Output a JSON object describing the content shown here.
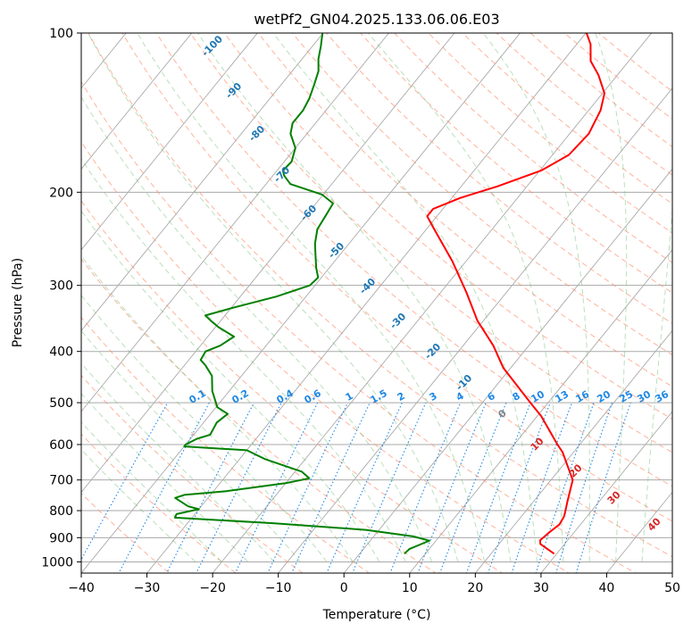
{
  "chart_data": {
    "type": "line",
    "subtype": "skew-T log-P diagram",
    "title": "wetPf2_GN04.2025.133.06.06.E03",
    "xlabel": "Temperature (°C)",
    "ylabel": "Pressure (hPa)",
    "xlim": [
      -40,
      50
    ],
    "ylim": [
      1050,
      100
    ],
    "y_scale": "log",
    "grid": true,
    "x_ticks": [
      -40,
      -30,
      -20,
      -10,
      0,
      10,
      20,
      30,
      40,
      50
    ],
    "x_tick_labels": [
      "−40",
      "−30",
      "−20",
      "−10",
      "0",
      "10",
      "20",
      "30",
      "40",
      "50"
    ],
    "y_ticks": [
      100,
      200,
      300,
      400,
      500,
      600,
      700,
      800,
      900,
      1000
    ],
    "y_tick_labels": [
      "100",
      "200",
      "300",
      "400",
      "500",
      "600",
      "700",
      "800",
      "900",
      "1000"
    ],
    "colors": {
      "temperature": "#ff0000",
      "dewpoint": "#008000",
      "isotherm": "#aaaaaa",
      "dry_adiabat": "#ff8a65",
      "moist_adiabat": "#66bb6a",
      "mixing_ratio": "#1e88e5",
      "isotherm_label": "#1f77b4",
      "adiabat_label": "#d62728",
      "zero_label": "#808080"
    },
    "isotherm_labels": [
      "-100",
      "-90",
      "-80",
      "-70",
      "-60",
      "-50",
      "-40",
      "-30",
      "-20",
      "-10",
      "0",
      "10",
      "20",
      "30",
      "40"
    ],
    "mixing_ratio_labels": [
      "0.1",
      "0.2",
      "0.4",
      "0.6",
      "1",
      "1.5",
      "2",
      "3",
      "4",
      "6",
      "8",
      "10",
      "13",
      "16",
      "20",
      "25",
      "30",
      "36"
    ],
    "series": [
      {
        "key": "temperature",
        "points": [
          [
            29.6,
            965
          ],
          [
            26.3,
            925
          ],
          [
            25.8,
            910
          ],
          [
            26.2,
            880
          ],
          [
            26.8,
            850
          ],
          [
            26.5,
            820
          ],
          [
            26.0,
            800
          ],
          [
            25.2,
            770
          ],
          [
            23.3,
            700
          ],
          [
            18.3,
            620
          ],
          [
            16.6,
            600
          ],
          [
            10.6,
            530
          ],
          [
            7.3,
            500
          ],
          [
            -1.1,
            430
          ],
          [
            -5.4,
            390
          ],
          [
            -10.9,
            350
          ],
          [
            -16.0,
            310
          ],
          [
            -22.1,
            270
          ],
          [
            -28.8,
            235
          ],
          [
            -31.5,
            222
          ],
          [
            -31.5,
            215
          ],
          [
            -28.7,
            205
          ],
          [
            -24.5,
            195
          ],
          [
            -19.8,
            182
          ],
          [
            -17.5,
            170
          ],
          [
            -17.1,
            155
          ],
          [
            -18.2,
            140
          ],
          [
            -19.7,
            130
          ],
          [
            -22.9,
            120
          ],
          [
            -25.8,
            113
          ],
          [
            -27.9,
            105
          ],
          [
            -29.9,
            100
          ]
        ]
      },
      {
        "key": "dewpoint",
        "points": [
          [
            6.8,
            965
          ],
          [
            7.0,
            945
          ],
          [
            8.5,
            920
          ],
          [
            9.0,
            912
          ],
          [
            6.0,
            895
          ],
          [
            -2.0,
            870
          ],
          [
            -17.0,
            845
          ],
          [
            -32.6,
            825
          ],
          [
            -32.8,
            812
          ],
          [
            -30.0,
            795
          ],
          [
            -32.0,
            785
          ],
          [
            -35.0,
            757
          ],
          [
            -34.0,
            747
          ],
          [
            -28.0,
            735
          ],
          [
            -20.0,
            710
          ],
          [
            -17.0,
            695
          ],
          [
            -19.0,
            675
          ],
          [
            -26.0,
            640
          ],
          [
            -30.0,
            615
          ],
          [
            -40.0,
            605
          ],
          [
            -40.0,
            600
          ],
          [
            -39.0,
            585
          ],
          [
            -37.5,
            575
          ],
          [
            -38.0,
            545
          ],
          [
            -37.4,
            525
          ],
          [
            -39.8,
            510
          ],
          [
            -42.6,
            475
          ],
          [
            -44.5,
            445
          ],
          [
            -46.8,
            425
          ],
          [
            -48.2,
            415
          ],
          [
            -48.5,
            400
          ],
          [
            -47.0,
            390
          ],
          [
            -46.0,
            375
          ],
          [
            -49.5,
            360
          ],
          [
            -51.5,
            350
          ],
          [
            -53.0,
            342
          ],
          [
            -49.5,
            330
          ],
          [
            -44.5,
            315
          ],
          [
            -40.8,
            300
          ],
          [
            -40.5,
            290
          ],
          [
            -42.0,
            278
          ],
          [
            -43.8,
            262
          ],
          [
            -45.2,
            250
          ],
          [
            -46.6,
            235
          ],
          [
            -47.0,
            222
          ],
          [
            -47.4,
            210
          ],
          [
            -50.2,
            202
          ],
          [
            -56.3,
            193
          ],
          [
            -58.3,
            186
          ],
          [
            -59.1,
            182
          ],
          [
            -58.9,
            175
          ],
          [
            -60.0,
            165
          ],
          [
            -62.5,
            155
          ],
          [
            -63.5,
            148
          ],
          [
            -63.5,
            140
          ],
          [
            -64.0,
            133
          ],
          [
            -65.0,
            125
          ],
          [
            -66.0,
            118
          ],
          [
            -67.5,
            112
          ],
          [
            -68.7,
            106
          ],
          [
            -70.1,
            100
          ]
        ]
      }
    ]
  }
}
